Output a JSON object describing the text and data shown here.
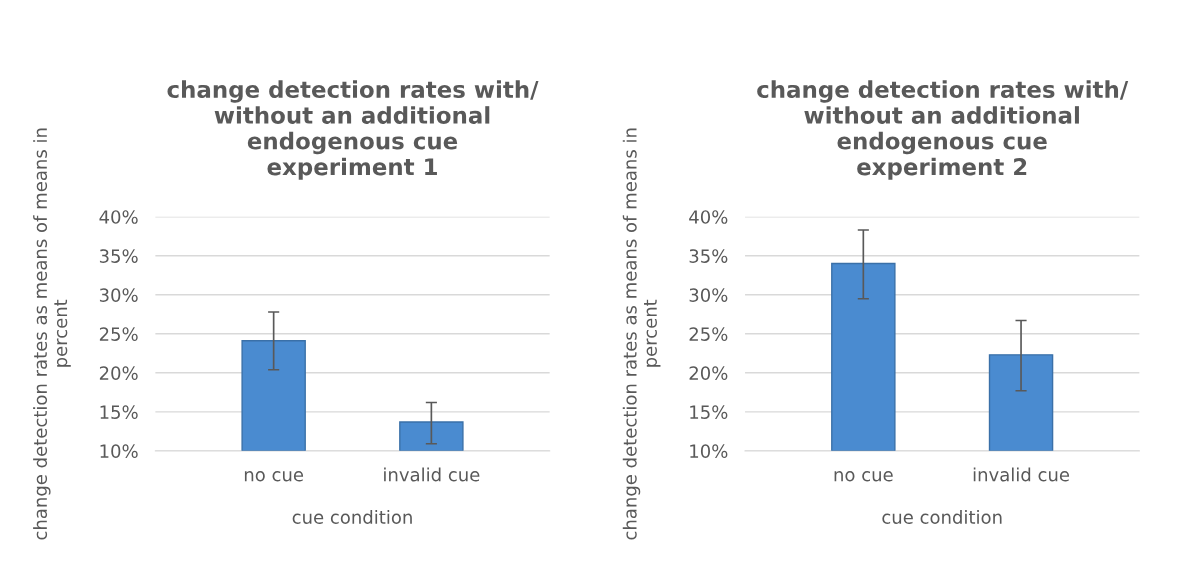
{
  "chart_data": [
    {
      "type": "bar",
      "title": "change detection rates with/\nwithout an additional\nendogenous cue\nexperiment 1",
      "xlabel": "cue condition",
      "ylabel": "change detection rates as means of means in\npercent",
      "categories": [
        "no cue",
        "invalid cue"
      ],
      "values": [
        24.1,
        13.7
      ],
      "errors": [
        [
          20.4,
          27.8
        ],
        [
          10.9,
          16.2
        ]
      ],
      "color": "#4a8bd0",
      "ylim": [
        10,
        40
      ],
      "yticks": [
        {
          "value": 10,
          "label": "10%"
        },
        {
          "value": 15,
          "label": "15%"
        },
        {
          "value": 20,
          "label": "20%"
        },
        {
          "value": 25,
          "label": "25%"
        },
        {
          "value": 30,
          "label": "30%"
        },
        {
          "value": 35,
          "label": "35%"
        },
        {
          "value": 40,
          "label": "40%"
        }
      ],
      "grid": "y"
    },
    {
      "type": "bar",
      "title": "change detection rates with/\nwithout an additional\nendogenous cue\nexperiment 2",
      "xlabel": "cue condition",
      "ylabel": "change detection rates as means of means in\npercent",
      "categories": [
        "no cue",
        "invalid cue"
      ],
      "values": [
        34.0,
        22.3
      ],
      "errors": [
        [
          29.5,
          38.3
        ],
        [
          17.7,
          26.7
        ]
      ],
      "color": "#4a8bd0",
      "ylim": [
        10,
        40
      ],
      "yticks": [
        {
          "value": 10,
          "label": "10%"
        },
        {
          "value": 15,
          "label": "15%"
        },
        {
          "value": 20,
          "label": "20%"
        },
        {
          "value": 25,
          "label": "25%"
        },
        {
          "value": 30,
          "label": "30%"
        },
        {
          "value": 35,
          "label": "35%"
        },
        {
          "value": 40,
          "label": "40%"
        }
      ],
      "grid": "y"
    }
  ]
}
